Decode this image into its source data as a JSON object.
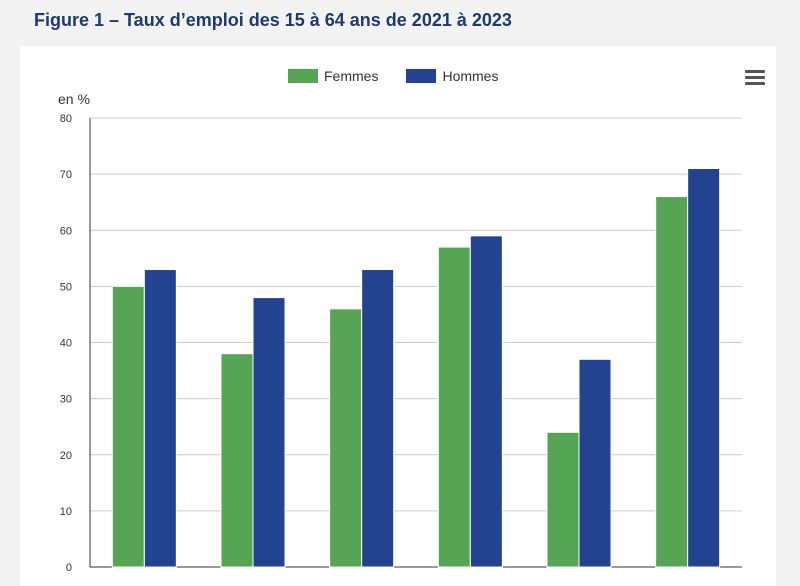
{
  "figure_title": "Figure 1 – Taux d’emploi des 15 à 64 ans de 2021 à 2023",
  "menu_icon": "hamburger-menu-icon",
  "colors": {
    "femmes": "#55a555",
    "hommes": "#23428f",
    "grid": "#cccccc",
    "axis": "#333333"
  },
  "chart_data": {
    "type": "bar",
    "title": "",
    "ylabel": "en %",
    "xlabel": "",
    "ylim": [
      0,
      80
    ],
    "yticks": [
      0,
      10,
      20,
      30,
      40,
      50,
      60,
      70,
      80
    ],
    "grid": true,
    "legend_position": "top",
    "categories": [
      "",
      "",
      "",
      "",
      "",
      ""
    ],
    "series": [
      {
        "name": "Femmes",
        "color": "#55a555",
        "values": [
          50,
          38,
          46,
          57,
          24,
          66
        ]
      },
      {
        "name": "Hommes",
        "color": "#23428f",
        "values": [
          53,
          48,
          53,
          59,
          37,
          71
        ]
      }
    ]
  }
}
